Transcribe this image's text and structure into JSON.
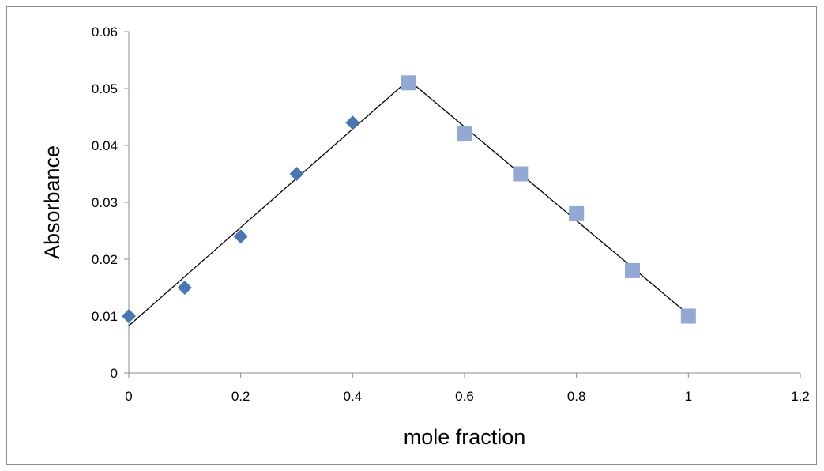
{
  "chart_data": {
    "type": "scatter",
    "title": "",
    "xlabel": "mole fraction",
    "ylabel": "Absorbance",
    "xlim": [
      0,
      1.2
    ],
    "ylim": [
      0,
      0.06
    ],
    "x_ticks": [
      "0",
      "0.2",
      "0.4",
      "0.6",
      "0.8",
      "1",
      "1.2"
    ],
    "y_ticks": [
      "0",
      "0.01",
      "0.02",
      "0.03",
      "0.04",
      "0.05",
      "0.06"
    ],
    "grid": false,
    "legend": "none",
    "series": [
      {
        "marker": "diamond",
        "color": "#4a76b0",
        "points": [
          {
            "x": 0,
            "y": 0.01
          },
          {
            "x": 0.1,
            "y": 0.015
          },
          {
            "x": 0.2,
            "y": 0.024
          },
          {
            "x": 0.3,
            "y": 0.035
          },
          {
            "x": 0.4,
            "y": 0.044
          }
        ]
      },
      {
        "marker": "square",
        "color": "#93a9d4",
        "points": [
          {
            "x": 0.5,
            "y": 0.051
          },
          {
            "x": 0.6,
            "y": 0.042
          },
          {
            "x": 0.7,
            "y": 0.035
          },
          {
            "x": 0.8,
            "y": 0.028
          },
          {
            "x": 0.9,
            "y": 0.018
          },
          {
            "x": 1.0,
            "y": 0.01
          }
        ]
      }
    ],
    "trendlines": [
      {
        "from": {
          "x": 0,
          "y": 0.0083
        },
        "to": {
          "x": 0.5,
          "y": 0.0515
        }
      },
      {
        "from": {
          "x": 0.5,
          "y": 0.0515
        },
        "to": {
          "x": 1.0,
          "y": 0.0103
        }
      }
    ],
    "line_color": "#000000"
  }
}
